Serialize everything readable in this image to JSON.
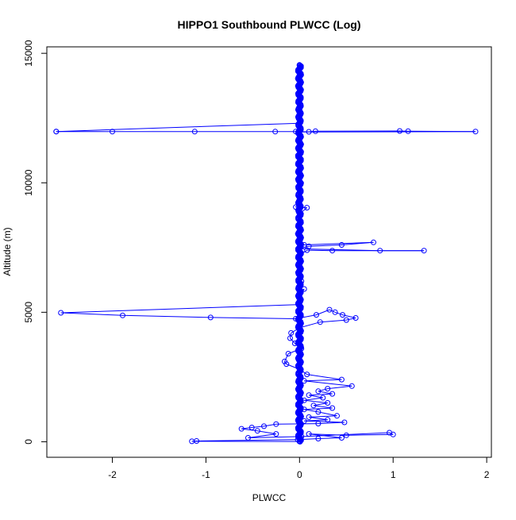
{
  "chart_data": {
    "type": "scatter",
    "title": "HIPPO1 Southbound PLWCC (Log)",
    "xlabel": "PLWCC",
    "ylabel": "Altitude (m)",
    "xlim": [
      -2.7,
      2.05
    ],
    "ylim": [
      -600,
      15250
    ],
    "x_ticks": [
      -2,
      -1,
      0,
      1,
      2
    ],
    "y_ticks": [
      0,
      5000,
      10000,
      15000
    ],
    "grid": false,
    "colors": {
      "series": "#0000ff",
      "axis": "#000000"
    },
    "series": [
      {
        "style": "points-and-lines",
        "points": [
          [
            0.0,
            14550
          ],
          [
            0.0,
            14200
          ],
          [
            0.0,
            13700
          ],
          [
            0.0,
            13200
          ],
          [
            0.0,
            12700
          ],
          [
            0.0,
            12300
          ],
          [
            -2.6,
            11980
          ],
          [
            -2.6,
            11980
          ],
          [
            -2.0,
            11975
          ],
          [
            -1.12,
            11975
          ],
          [
            -0.26,
            11975
          ],
          [
            -0.04,
            11980
          ],
          [
            0.1,
            11970
          ],
          [
            0.17,
            11990
          ],
          [
            1.07,
            12000
          ],
          [
            1.16,
            11990
          ],
          [
            1.88,
            11980
          ],
          [
            0.0,
            11960
          ],
          [
            0.0,
            11600
          ],
          [
            0.0,
            11000
          ],
          [
            0.0,
            10400
          ],
          [
            0.0,
            9900
          ],
          [
            0.0,
            9400
          ],
          [
            -0.04,
            9060
          ],
          [
            0.08,
            9040
          ],
          [
            0.0,
            8800
          ],
          [
            0.0,
            8300
          ],
          [
            0.0,
            7900
          ],
          [
            0.05,
            7600
          ],
          [
            0.79,
            7700
          ],
          [
            0.45,
            7600
          ],
          [
            0.1,
            7550
          ],
          [
            0.0,
            7450
          ],
          [
            0.86,
            7380
          ],
          [
            1.33,
            7380
          ],
          [
            0.35,
            7380
          ],
          [
            0.08,
            7400
          ],
          [
            0.0,
            7200
          ],
          [
            0.0,
            6800
          ],
          [
            0.02,
            6200
          ],
          [
            0.0,
            5800
          ],
          [
            0.05,
            5900
          ],
          [
            0.0,
            5600
          ],
          [
            0.0,
            5300
          ],
          [
            -2.55,
            4980
          ],
          [
            -1.89,
            4880
          ],
          [
            -0.95,
            4800
          ],
          [
            -0.04,
            4750
          ],
          [
            0.18,
            4900
          ],
          [
            0.32,
            5100
          ],
          [
            0.38,
            5000
          ],
          [
            0.46,
            4900
          ],
          [
            0.6,
            4780
          ],
          [
            0.5,
            4700
          ],
          [
            0.22,
            4620
          ],
          [
            0.0,
            4400
          ],
          [
            -0.09,
            4200
          ],
          [
            -0.1,
            4000
          ],
          [
            -0.05,
            3800
          ],
          [
            0.02,
            3600
          ],
          [
            -0.12,
            3400
          ],
          [
            -0.16,
            3100
          ],
          [
            -0.14,
            3000
          ],
          [
            0.0,
            2800
          ],
          [
            0.08,
            2600
          ],
          [
            0.45,
            2400
          ],
          [
            0.05,
            2350
          ],
          [
            0.56,
            2150
          ],
          [
            0.3,
            2050
          ],
          [
            0.2,
            1950
          ],
          [
            0.35,
            1850
          ],
          [
            0.1,
            1800
          ],
          [
            0.25,
            1700
          ],
          [
            0.05,
            1600
          ],
          [
            0.3,
            1500
          ],
          [
            0.15,
            1400
          ],
          [
            0.35,
            1300
          ],
          [
            0.05,
            1250
          ],
          [
            0.2,
            1150
          ],
          [
            0.4,
            1000
          ],
          [
            0.1,
            950
          ],
          [
            0.3,
            850
          ],
          [
            0.05,
            800
          ],
          [
            0.48,
            750
          ],
          [
            0.2,
            700
          ],
          [
            -0.25,
            680
          ],
          [
            -0.38,
            600
          ],
          [
            -0.51,
            550
          ],
          [
            -0.62,
            500
          ],
          [
            -0.45,
            420
          ],
          [
            -0.25,
            300
          ],
          [
            -0.55,
            150
          ],
          [
            0.02,
            200
          ],
          [
            0.96,
            350
          ],
          [
            1.0,
            280
          ],
          [
            0.5,
            250
          ],
          [
            0.1,
            300
          ],
          [
            0.45,
            150
          ],
          [
            0.2,
            120
          ],
          [
            -0.02,
            80
          ],
          [
            -1.1,
            30
          ],
          [
            -1.15,
            15
          ],
          [
            0.0,
            10
          ]
        ]
      }
    ]
  }
}
